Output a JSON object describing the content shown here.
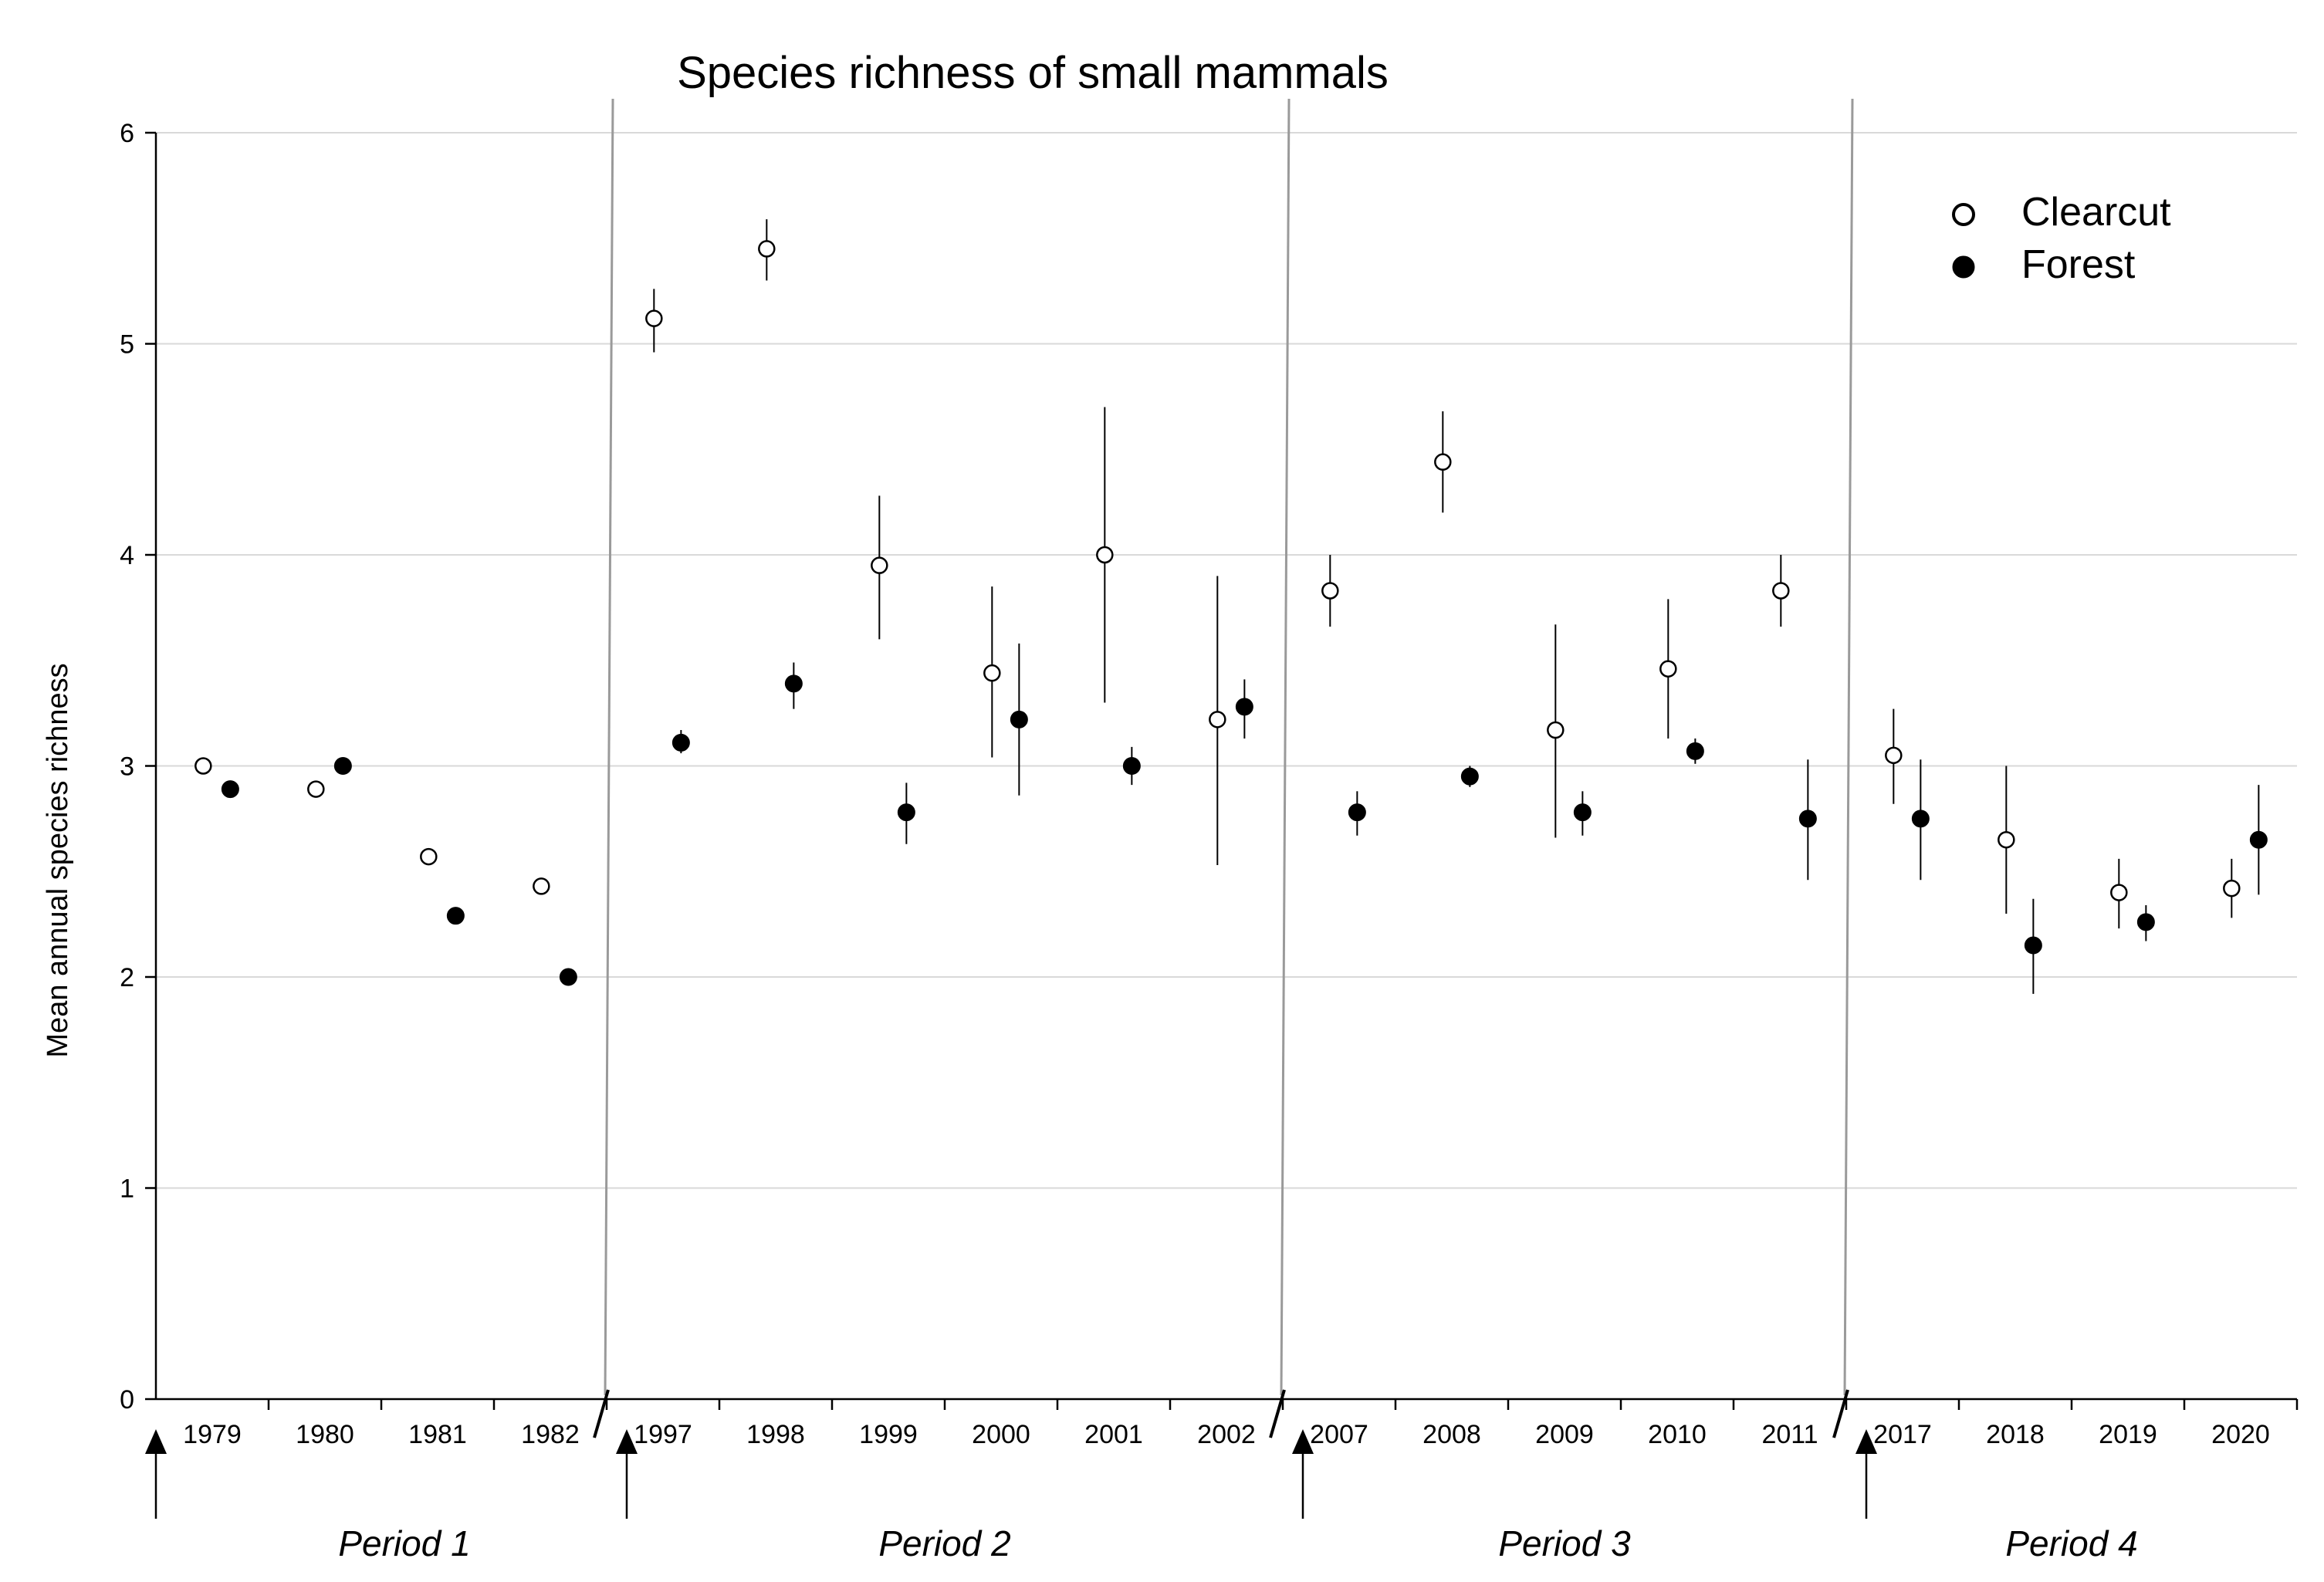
{
  "chart_data": {
    "type": "scatter",
    "title": "Species richness of small mammals",
    "xlabel": "",
    "ylabel": "Mean annual species richness",
    "ylim": [
      0,
      6
    ],
    "yticks": [
      "0",
      "1",
      "2",
      "3",
      "4",
      "5",
      "6"
    ],
    "grid": true,
    "legend_position": "top-right",
    "categories": [
      "1979",
      "1980",
      "1981",
      "1982",
      "1997",
      "1998",
      "1999",
      "2000",
      "2001",
      "2002",
      "2007",
      "2008",
      "2009",
      "2010",
      "2011",
      "2017",
      "2018",
      "2019",
      "2020"
    ],
    "periods": [
      {
        "label": "Period 1",
        "years": [
          "1979",
          "1980",
          "1981",
          "1982"
        ]
      },
      {
        "label": "Period 2",
        "years": [
          "1997",
          "1998",
          "1999",
          "2000",
          "2001",
          "2002"
        ]
      },
      {
        "label": "Period 3",
        "years": [
          "2007",
          "2008",
          "2009",
          "2010",
          "2011"
        ]
      },
      {
        "label": "Period 4",
        "years": [
          "2017",
          "2018",
          "2019",
          "2020"
        ]
      }
    ],
    "series": [
      {
        "name": "Clearcut",
        "marker": "open-circle",
        "values": [
          3.0,
          2.89,
          2.57,
          2.43,
          5.12,
          5.45,
          3.95,
          3.44,
          4.0,
          3.22,
          3.83,
          4.44,
          3.17,
          3.46,
          3.83,
          3.05,
          2.65,
          2.4,
          2.42
        ],
        "err_low": [
          null,
          null,
          null,
          null,
          4.96,
          5.3,
          3.6,
          3.04,
          3.3,
          2.53,
          3.66,
          4.2,
          2.66,
          3.13,
          3.66,
          2.82,
          2.3,
          2.23,
          2.28
        ],
        "err_high": [
          null,
          null,
          null,
          null,
          5.26,
          5.59,
          4.28,
          3.85,
          4.7,
          3.9,
          4.0,
          4.68,
          3.67,
          3.79,
          4.0,
          3.27,
          3.0,
          2.56,
          2.56
        ]
      },
      {
        "name": "Forest",
        "marker": "filled-circle",
        "values": [
          2.89,
          3.0,
          2.29,
          2.0,
          3.11,
          3.39,
          2.78,
          3.22,
          3.0,
          3.28,
          2.78,
          2.95,
          2.78,
          3.07,
          2.75,
          2.75,
          2.15,
          2.26,
          2.65
        ],
        "err_low": [
          null,
          null,
          null,
          null,
          3.06,
          3.27,
          2.63,
          2.86,
          2.91,
          3.13,
          2.67,
          2.9,
          2.67,
          3.01,
          2.46,
          2.46,
          1.92,
          2.17,
          2.39
        ],
        "err_high": [
          null,
          null,
          null,
          null,
          3.17,
          3.49,
          2.92,
          3.58,
          3.09,
          3.41,
          2.88,
          3.0,
          2.88,
          3.13,
          3.03,
          3.03,
          2.37,
          2.34,
          2.91
        ]
      }
    ]
  }
}
